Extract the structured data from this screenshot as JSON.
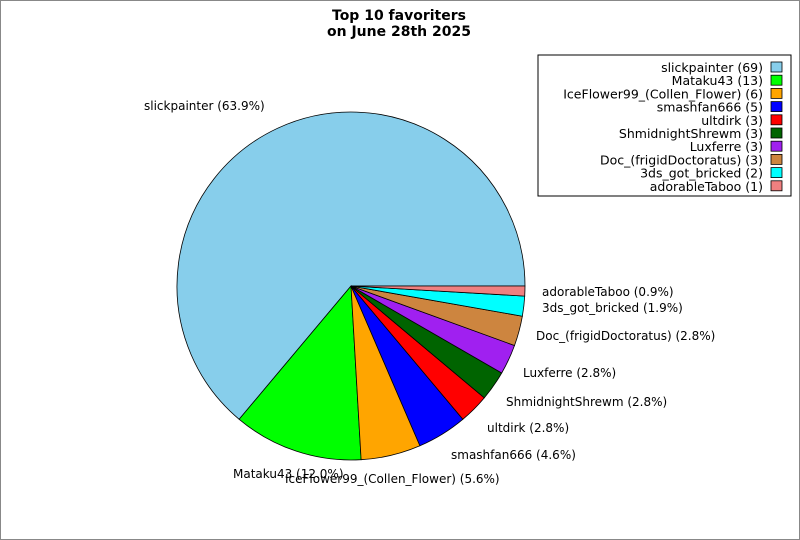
{
  "chart_data": {
    "type": "pie",
    "title_lines": [
      "Top 10 favoriters",
      "on June 28th 2025"
    ],
    "slices": [
      {
        "name": "slickpainter",
        "value": 69,
        "percent_label": "slickpainter (63.9%)",
        "legend_label": "slickpainter (69)",
        "color": "#87CEEB"
      },
      {
        "name": "Mataku43",
        "value": 13,
        "percent_label": "Mataku43 (12.0%)",
        "legend_label": "Mataku43 (13)",
        "color": "#00FF00"
      },
      {
        "name": "IceFlower99_(Collen_Flower)",
        "value": 6,
        "percent_label": "IceFlower99_(Collen_Flower) (5.6%)",
        "legend_label": "IceFlower99_(Collen_Flower) (6)",
        "color": "#FFA500"
      },
      {
        "name": "smashfan666",
        "value": 5,
        "percent_label": "smashfan666 (4.6%)",
        "legend_label": "smashfan666 (5)",
        "color": "#0000FF"
      },
      {
        "name": "ultdirk",
        "value": 3,
        "percent_label": "ultdirk (2.8%)",
        "legend_label": "ultdirk (3)",
        "color": "#FF0000"
      },
      {
        "name": "ShmidnightShrewm",
        "value": 3,
        "percent_label": "ShmidnightShrewm (2.8%)",
        "legend_label": "ShmidnightShrewm (3)",
        "color": "#006400"
      },
      {
        "name": "Luxferre",
        "value": 3,
        "percent_label": "Luxferre (2.8%)",
        "legend_label": "Luxferre (3)",
        "color": "#A020F0"
      },
      {
        "name": "Doc_(frigidDoctoratus)",
        "value": 3,
        "percent_label": "Doc_(frigidDoctoratus) (2.8%)",
        "legend_label": "Doc_(frigidDoctoratus) (3)",
        "color": "#CD853F"
      },
      {
        "name": "3ds_got_bricked",
        "value": 2,
        "percent_label": "3ds_got_bricked (1.9%)",
        "legend_label": "3ds_got_bricked (2)",
        "color": "#00FFFF"
      },
      {
        "name": "adorableTaboo",
        "value": 1,
        "percent_label": "adorableTaboo (0.9%)",
        "legend_label": "adorableTaboo (1)",
        "color": "#F08080"
      }
    ],
    "legend_position": "top-right"
  }
}
